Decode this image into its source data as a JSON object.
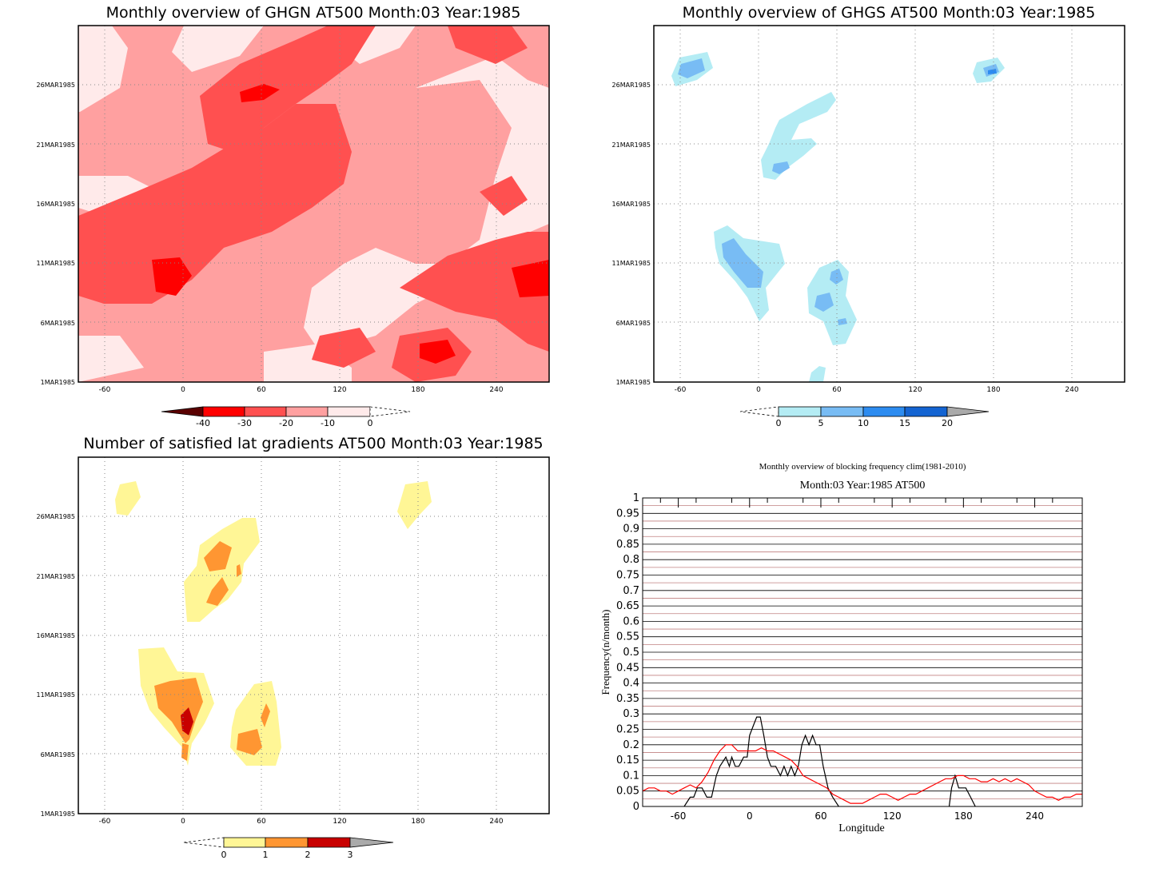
{
  "panels": {
    "ghgn": {
      "title": "Monthly overview of GHGN AT500 Month:03 Year:1985",
      "x_ticks": [
        "-60",
        "0",
        "60",
        "120",
        "180",
        "240"
      ],
      "y_ticks": [
        "1MAR1985",
        "6MAR1985",
        "11MAR1985",
        "16MAR1985",
        "21MAR1985",
        "26MAR1985"
      ],
      "colorbar_labels": [
        "-40",
        "-30",
        "-20",
        "-10",
        "0"
      ],
      "colors": [
        "#5a0000",
        "#ff0000",
        "#ff5050",
        "#ffa0a0",
        "#ffeaea"
      ]
    },
    "ghgs": {
      "title": "Monthly overview of GHGS AT500 Month:03 Year:1985",
      "x_ticks": [
        "-60",
        "0",
        "60",
        "120",
        "180",
        "240"
      ],
      "y_ticks": [
        "1MAR1985",
        "6MAR1985",
        "11MAR1985",
        "16MAR1985",
        "21MAR1985",
        "26MAR1985"
      ],
      "colorbar_labels": [
        "0",
        "5",
        "10",
        "15",
        "20"
      ],
      "colors": [
        "#b4ecf4",
        "#78bcf4",
        "#2d8cf0",
        "#1464d2",
        "#aaaaaa"
      ]
    },
    "grad": {
      "title": "Number of satisfied lat gradients AT500 Month:03 Year:1985",
      "x_ticks": [
        "-60",
        "0",
        "60",
        "120",
        "180",
        "240"
      ],
      "y_ticks": [
        "1MAR1985",
        "6MAR1985",
        "11MAR1985",
        "16MAR1985",
        "21MAR1985",
        "26MAR1985"
      ],
      "colorbar_labels": [
        "0",
        "1",
        "2",
        "3"
      ],
      "colors": [
        "#fff696",
        "#ff9632",
        "#c80000",
        "#aaaaaa"
      ]
    }
  },
  "chart_data": {
    "type": "line",
    "title": "Monthly overview of blocking frequency clim(1981-2010)",
    "subtitle": "Month:03 Year:1985  AT500",
    "xlabel": "Longitude",
    "ylabel": "Frequency(n/month)",
    "xlim": [
      -90,
      280
    ],
    "ylim": [
      0,
      1
    ],
    "x_ticks": [
      "-60",
      "0",
      "60",
      "120",
      "180",
      "240"
    ],
    "y_ticks": [
      "0",
      "0.05",
      "0.1",
      "0.15",
      "0.2",
      "0.25",
      "0.3",
      "0.35",
      "0.4",
      "0.45",
      "0.5",
      "0.55",
      "0.6",
      "0.65",
      "0.7",
      "0.75",
      "0.8",
      "0.85",
      "0.9",
      "0.95",
      "1"
    ],
    "grid": true,
    "series": [
      {
        "color": "#000000",
        "x": [
          -90,
          -55,
          -50,
          -47,
          -44,
          -40,
          -36,
          -32,
          -28,
          -25,
          -20,
          -17,
          -15,
          -12,
          -9,
          -5,
          -2,
          0,
          3,
          6,
          9,
          12,
          15,
          18,
          22,
          26,
          29,
          32,
          35,
          38,
          41,
          44,
          47,
          50,
          53,
          56,
          59,
          62,
          66,
          70,
          75,
          80,
          165,
          168,
          170,
          173,
          176,
          179,
          182,
          186,
          190,
          280
        ],
        "y": [
          null,
          0,
          0.03,
          0.03,
          0.06,
          0.06,
          0.03,
          0.03,
          0.1,
          0.13,
          0.16,
          0.13,
          0.16,
          0.13,
          0.13,
          0.16,
          0.16,
          0.23,
          0.26,
          0.29,
          0.29,
          0.23,
          0.16,
          0.13,
          0.13,
          0.1,
          0.13,
          0.1,
          0.13,
          0.1,
          0.13,
          0.2,
          0.23,
          0.2,
          0.23,
          0.2,
          0.2,
          0.13,
          0.06,
          0.03,
          0,
          null,
          null,
          0,
          0.06,
          0.1,
          0.06,
          0.06,
          0.06,
          0.03,
          0,
          null
        ]
      },
      {
        "color": "#ff0000",
        "x": [
          -90,
          -85,
          -80,
          -75,
          -70,
          -65,
          -60,
          -55,
          -50,
          -45,
          -40,
          -35,
          -30,
          -25,
          -20,
          -15,
          -10,
          -5,
          0,
          5,
          10,
          15,
          20,
          25,
          30,
          35,
          40,
          45,
          50,
          55,
          60,
          65,
          70,
          75,
          80,
          85,
          90,
          95,
          100,
          105,
          110,
          115,
          120,
          125,
          130,
          135,
          140,
          145,
          150,
          155,
          160,
          165,
          170,
          175,
          180,
          185,
          190,
          195,
          200,
          205,
          210,
          215,
          220,
          225,
          230,
          235,
          240,
          245,
          250,
          255,
          260,
          265,
          270,
          275,
          280
        ],
        "y": [
          0.05,
          0.06,
          0.06,
          0.05,
          0.05,
          0.04,
          0.05,
          0.06,
          0.07,
          0.06,
          0.08,
          0.11,
          0.15,
          0.18,
          0.2,
          0.2,
          0.18,
          0.18,
          0.18,
          0.18,
          0.19,
          0.18,
          0.18,
          0.17,
          0.16,
          0.15,
          0.13,
          0.1,
          0.09,
          0.08,
          0.07,
          0.06,
          0.04,
          0.03,
          0.02,
          0.01,
          0.01,
          0.01,
          0.02,
          0.03,
          0.04,
          0.04,
          0.03,
          0.02,
          0.03,
          0.04,
          0.04,
          0.05,
          0.06,
          0.07,
          0.08,
          0.09,
          0.09,
          0.1,
          0.1,
          0.09,
          0.09,
          0.08,
          0.08,
          0.09,
          0.08,
          0.09,
          0.08,
          0.09,
          0.08,
          0.07,
          0.05,
          0.04,
          0.03,
          0.03,
          0.02,
          0.03,
          0.03,
          0.04,
          0.04
        ]
      }
    ]
  }
}
